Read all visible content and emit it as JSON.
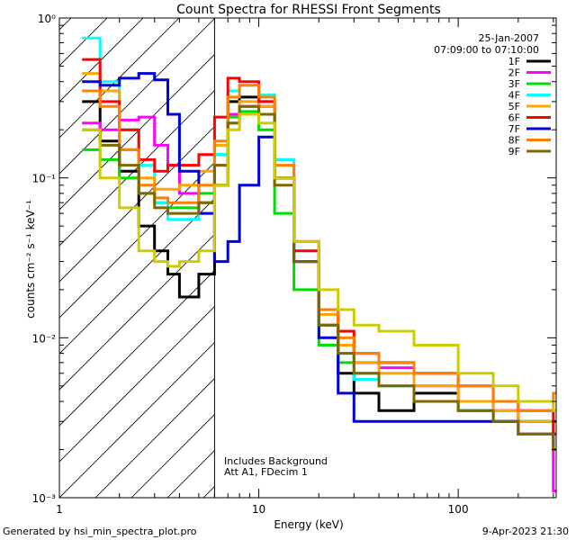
{
  "chart_data": {
    "type": "line",
    "title": "Count Spectra for RHESSI Front Segments",
    "xlabel": "Energy (keV)",
    "ylabel": "counts cm⁻² s⁻¹ keV⁻¹",
    "xscale": "log",
    "yscale": "log",
    "xlim": [
      1,
      310
    ],
    "ylim": [
      0.001,
      1
    ],
    "x_ticks": [
      {
        "value": 1,
        "label": "1"
      },
      {
        "value": 10,
        "label": "10"
      },
      {
        "value": 100,
        "label": "100"
      }
    ],
    "y_ticks": [
      {
        "value": 1,
        "label": "10⁰"
      },
      {
        "value": 0.1,
        "label": "10⁻¹"
      },
      {
        "value": 0.01,
        "label": "10⁻²"
      },
      {
        "value": 0.001,
        "label": "10⁻³"
      }
    ],
    "date": "25-Jan-2007",
    "time_range": "07:09:00 to 07:10:00",
    "legend_position": "top-right",
    "hatched_region_max_energy": 6,
    "annotations": [
      "Includes Background",
      "Att A1, FDecim 1"
    ],
    "series": [
      {
        "name": "1F",
        "color": "#000000",
        "points": [
          [
            1.3,
            0.3
          ],
          [
            1.6,
            0.17
          ],
          [
            2.0,
            0.11
          ],
          [
            2.5,
            0.05
          ],
          [
            3.0,
            0.035
          ],
          [
            3.5,
            0.025
          ],
          [
            4.0,
            0.018
          ],
          [
            5.0,
            0.025
          ],
          [
            6.0,
            0.09
          ],
          [
            7.0,
            0.3
          ],
          [
            8.0,
            0.32
          ],
          [
            10.0,
            0.28
          ],
          [
            12.0,
            0.1
          ],
          [
            15.0,
            0.03
          ],
          [
            20.0,
            0.012
          ],
          [
            25.0,
            0.006
          ],
          [
            30.0,
            0.0045
          ],
          [
            40.0,
            0.0035
          ],
          [
            60.0,
            0.0045
          ],
          [
            100.0,
            0.0035
          ],
          [
            150.0,
            0.003
          ],
          [
            200.0,
            0.003
          ],
          [
            300.0,
            0.003
          ]
        ]
      },
      {
        "name": "2F",
        "color": "#ff00ff",
        "points": [
          [
            1.3,
            0.22
          ],
          [
            1.6,
            0.2
          ],
          [
            2.0,
            0.23
          ],
          [
            2.5,
            0.24
          ],
          [
            3.0,
            0.16
          ],
          [
            3.5,
            0.12
          ],
          [
            4.0,
            0.08
          ],
          [
            5.0,
            0.07
          ],
          [
            6.0,
            0.12
          ],
          [
            7.0,
            0.25
          ],
          [
            8.0,
            0.28
          ],
          [
            10.0,
            0.3
          ],
          [
            12.0,
            0.13
          ],
          [
            15.0,
            0.04
          ],
          [
            20.0,
            0.015
          ],
          [
            25.0,
            0.009
          ],
          [
            30.0,
            0.007
          ],
          [
            40.0,
            0.0065
          ],
          [
            60.0,
            0.005
          ],
          [
            100.0,
            0.004
          ],
          [
            150.0,
            0.0035
          ],
          [
            200.0,
            0.003
          ],
          [
            300.0,
            0.0011
          ]
        ]
      },
      {
        "name": "3F",
        "color": "#00dd00",
        "points": [
          [
            1.3,
            0.15
          ],
          [
            1.6,
            0.13
          ],
          [
            2.0,
            0.1
          ],
          [
            2.5,
            0.08
          ],
          [
            3.0,
            0.07
          ],
          [
            3.5,
            0.065
          ],
          [
            4.0,
            0.065
          ],
          [
            5.0,
            0.08
          ],
          [
            6.0,
            0.14
          ],
          [
            7.0,
            0.24
          ],
          [
            8.0,
            0.26
          ],
          [
            10.0,
            0.2
          ],
          [
            12.0,
            0.06
          ],
          [
            15.0,
            0.02
          ],
          [
            20.0,
            0.009
          ],
          [
            25.0,
            0.007
          ],
          [
            30.0,
            0.006
          ],
          [
            40.0,
            0.005
          ],
          [
            60.0,
            0.004
          ],
          [
            100.0,
            0.0035
          ],
          [
            150.0,
            0.003
          ],
          [
            200.0,
            0.003
          ],
          [
            300.0,
            0.0025
          ]
        ]
      },
      {
        "name": "4F",
        "color": "#00ffff",
        "points": [
          [
            1.3,
            0.75
          ],
          [
            1.6,
            0.4
          ],
          [
            2.0,
            0.2
          ],
          [
            2.5,
            0.12
          ],
          [
            3.0,
            0.07
          ],
          [
            3.5,
            0.055
          ],
          [
            4.0,
            0.055
          ],
          [
            5.0,
            0.07
          ],
          [
            6.0,
            0.14
          ],
          [
            7.0,
            0.35
          ],
          [
            8.0,
            0.38
          ],
          [
            10.0,
            0.33
          ],
          [
            12.0,
            0.13
          ],
          [
            15.0,
            0.035
          ],
          [
            20.0,
            0.012
          ],
          [
            25.0,
            0.008
          ],
          [
            30.0,
            0.0055
          ],
          [
            40.0,
            0.005
          ],
          [
            60.0,
            0.004
          ],
          [
            100.0,
            0.0035
          ],
          [
            150.0,
            0.003
          ],
          [
            200.0,
            0.003
          ],
          [
            300.0,
            0.0025
          ]
        ]
      },
      {
        "name": "5F",
        "color": "#ffa500",
        "points": [
          [
            1.3,
            0.45
          ],
          [
            1.6,
            0.35
          ],
          [
            2.0,
            0.15
          ],
          [
            2.5,
            0.1
          ],
          [
            3.0,
            0.085
          ],
          [
            3.5,
            0.085
          ],
          [
            4.0,
            0.09
          ],
          [
            5.0,
            0.11
          ],
          [
            6.0,
            0.16
          ],
          [
            7.0,
            0.22
          ],
          [
            8.0,
            0.3
          ],
          [
            10.0,
            0.28
          ],
          [
            12.0,
            0.12
          ],
          [
            15.0,
            0.04
          ],
          [
            20.0,
            0.014
          ],
          [
            25.0,
            0.009
          ],
          [
            30.0,
            0.007
          ],
          [
            40.0,
            0.006
          ],
          [
            60.0,
            0.005
          ],
          [
            100.0,
            0.004
          ],
          [
            150.0,
            0.0035
          ],
          [
            200.0,
            0.003
          ],
          [
            300.0,
            0.0025
          ]
        ]
      },
      {
        "name": "6F",
        "color": "#ff0000",
        "points": [
          [
            1.3,
            0.55
          ],
          [
            1.6,
            0.3
          ],
          [
            2.0,
            0.2
          ],
          [
            2.5,
            0.13
          ],
          [
            3.0,
            0.11
          ],
          [
            3.5,
            0.12
          ],
          [
            4.0,
            0.12
          ],
          [
            5.0,
            0.14
          ],
          [
            6.0,
            0.24
          ],
          [
            7.0,
            0.42
          ],
          [
            8.0,
            0.4
          ],
          [
            10.0,
            0.3
          ],
          [
            12.0,
            0.1
          ],
          [
            15.0,
            0.035
          ],
          [
            20.0,
            0.015
          ],
          [
            25.0,
            0.011
          ],
          [
            30.0,
            0.008
          ],
          [
            40.0,
            0.007
          ],
          [
            60.0,
            0.006
          ],
          [
            100.0,
            0.005
          ],
          [
            150.0,
            0.004
          ],
          [
            200.0,
            0.0035
          ],
          [
            300.0,
            0.0025
          ]
        ]
      },
      {
        "name": "7F",
        "color": "#0000dd",
        "points": [
          [
            1.3,
            0.4
          ],
          [
            1.6,
            0.38
          ],
          [
            2.0,
            0.42
          ],
          [
            2.5,
            0.45
          ],
          [
            3.0,
            0.41
          ],
          [
            3.5,
            0.25
          ],
          [
            4.0,
            0.11
          ],
          [
            5.0,
            0.06
          ],
          [
            6.0,
            0.03
          ],
          [
            7.0,
            0.04
          ],
          [
            8.0,
            0.09
          ],
          [
            10.0,
            0.18
          ],
          [
            12.0,
            0.1
          ],
          [
            15.0,
            0.03
          ],
          [
            20.0,
            0.01
          ],
          [
            25.0,
            0.0045
          ],
          [
            30.0,
            0.003
          ],
          [
            40.0,
            0.003
          ],
          [
            60.0,
            0.003
          ],
          [
            100.0,
            0.003
          ],
          [
            150.0,
            0.003
          ],
          [
            200.0,
            0.0025
          ],
          [
            300.0,
            0.002
          ]
        ]
      },
      {
        "name": "8F",
        "color": "#ff8000",
        "points": [
          [
            1.3,
            0.35
          ],
          [
            1.6,
            0.28
          ],
          [
            2.0,
            0.15
          ],
          [
            2.5,
            0.09
          ],
          [
            3.0,
            0.075
          ],
          [
            3.5,
            0.07
          ],
          [
            4.0,
            0.07
          ],
          [
            5.0,
            0.09
          ],
          [
            6.0,
            0.17
          ],
          [
            7.0,
            0.32
          ],
          [
            8.0,
            0.38
          ],
          [
            10.0,
            0.32
          ],
          [
            12.0,
            0.12
          ],
          [
            15.0,
            0.04
          ],
          [
            20.0,
            0.015
          ],
          [
            25.0,
            0.01
          ],
          [
            30.0,
            0.008
          ],
          [
            40.0,
            0.007
          ],
          [
            60.0,
            0.006
          ],
          [
            100.0,
            0.005
          ],
          [
            150.0,
            0.004
          ],
          [
            200.0,
            0.0035
          ],
          [
            300.0,
            0.0045
          ]
        ]
      },
      {
        "name": "9F",
        "color": "#806600",
        "points": [
          [
            1.3,
            0.2
          ],
          [
            1.6,
            0.16
          ],
          [
            2.0,
            0.12
          ],
          [
            2.5,
            0.08
          ],
          [
            3.0,
            0.065
          ],
          [
            3.5,
            0.06
          ],
          [
            4.0,
            0.06
          ],
          [
            5.0,
            0.07
          ],
          [
            6.0,
            0.12
          ],
          [
            7.0,
            0.22
          ],
          [
            8.0,
            0.28
          ],
          [
            10.0,
            0.25
          ],
          [
            12.0,
            0.09
          ],
          [
            15.0,
            0.03
          ],
          [
            20.0,
            0.012
          ],
          [
            25.0,
            0.008
          ],
          [
            30.0,
            0.006
          ],
          [
            40.0,
            0.005
          ],
          [
            60.0,
            0.004
          ],
          [
            100.0,
            0.0035
          ],
          [
            150.0,
            0.003
          ],
          [
            200.0,
            0.0025
          ],
          [
            300.0,
            0.002
          ]
        ]
      },
      {
        "name": "",
        "color": "#cccc00",
        "points": [
          [
            1.3,
            0.2
          ],
          [
            1.6,
            0.1
          ],
          [
            2.0,
            0.065
          ],
          [
            2.5,
            0.035
          ],
          [
            3.0,
            0.03
          ],
          [
            3.5,
            0.028
          ],
          [
            4.0,
            0.03
          ],
          [
            5.0,
            0.035
          ],
          [
            6.0,
            0.09
          ],
          [
            7.0,
            0.2
          ],
          [
            8.0,
            0.25
          ],
          [
            10.0,
            0.22
          ],
          [
            12.0,
            0.1
          ],
          [
            15.0,
            0.04
          ],
          [
            20.0,
            0.02
          ],
          [
            25.0,
            0.015
          ],
          [
            30.0,
            0.012
          ],
          [
            40.0,
            0.011
          ],
          [
            60.0,
            0.009
          ],
          [
            100.0,
            0.006
          ],
          [
            150.0,
            0.005
          ],
          [
            200.0,
            0.004
          ],
          [
            300.0,
            0.0035
          ]
        ]
      }
    ]
  },
  "footer": {
    "left": "Generated by hsi_min_spectra_plot.pro",
    "right": "9-Apr-2023 21:30"
  }
}
